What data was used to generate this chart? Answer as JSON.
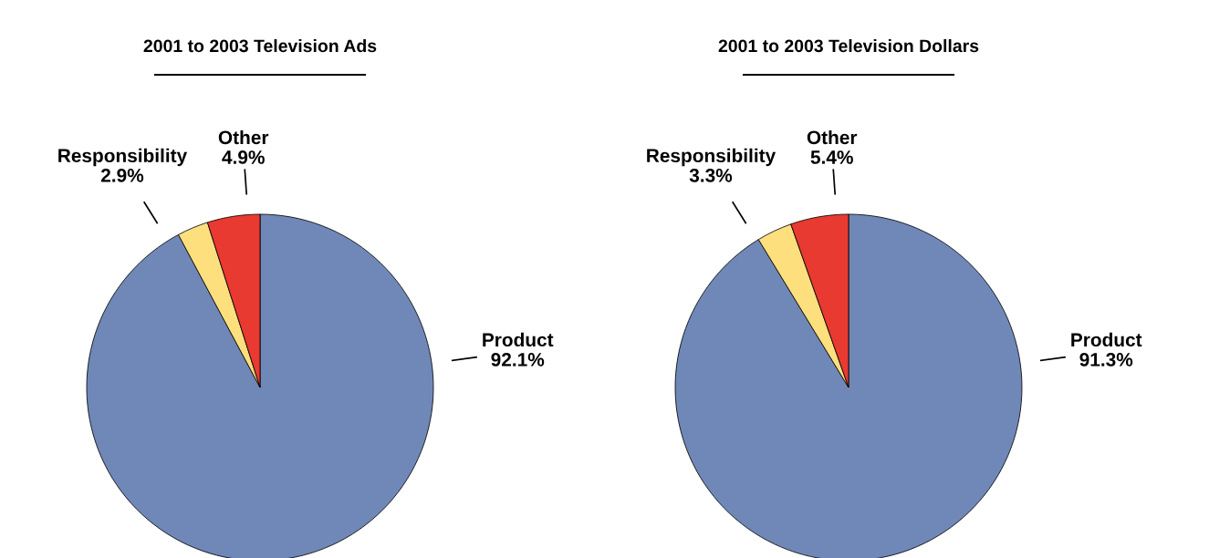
{
  "chart_data": [
    {
      "type": "pie",
      "title": "2001 to 2003 Television Ads",
      "categories": [
        "Product",
        "Responsibility",
        "Other"
      ],
      "values": [
        92.1,
        2.9,
        4.9
      ],
      "colors": [
        "#7088b8",
        "#fddf7e",
        "#e83a30"
      ],
      "value_labels": [
        "92.1%",
        "2.9%",
        "4.9%"
      ]
    },
    {
      "type": "pie",
      "title": "2001 to 2003 Television Dollars",
      "categories": [
        "Product",
        "Responsibility",
        "Other"
      ],
      "values": [
        91.3,
        3.3,
        5.4
      ],
      "colors": [
        "#7088b8",
        "#fddf7e",
        "#e83a30"
      ],
      "value_labels": [
        "91.3%",
        "3.3%",
        "5.4%"
      ]
    }
  ]
}
